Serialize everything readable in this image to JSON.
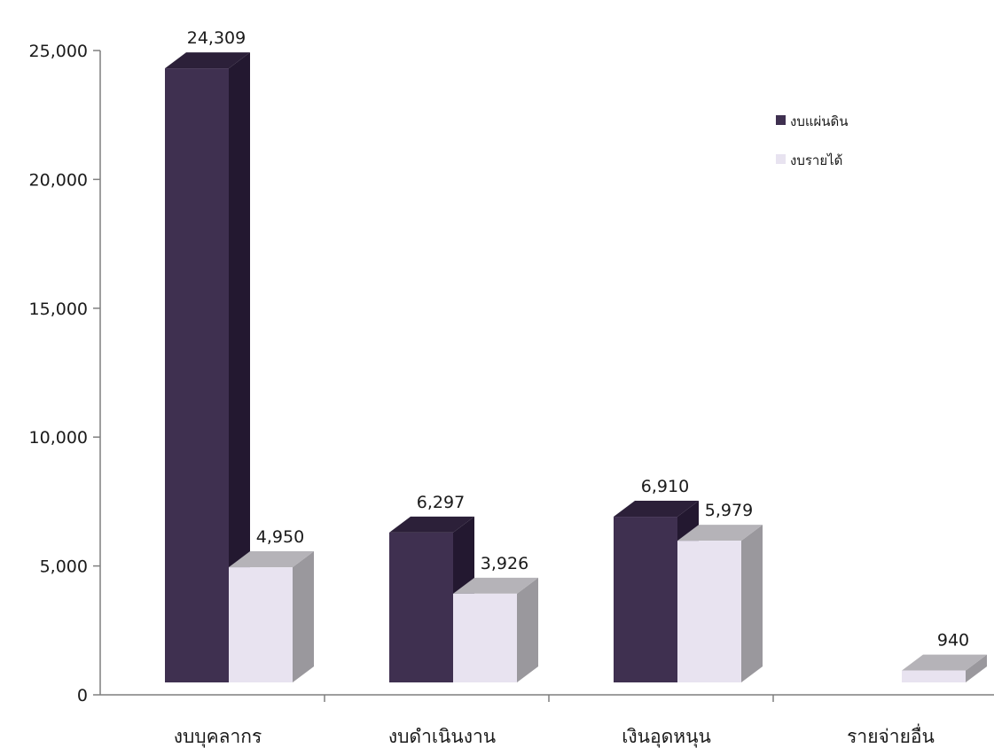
{
  "chart_data": {
    "type": "bar",
    "categories": [
      "งบบุคลากร",
      "งบดำเนินงาน",
      "เงินอุดหนุน",
      "รายจ่ายอื่น"
    ],
    "series": [
      {
        "name": "งบแผ่นดิน",
        "values": [
          24309,
          6297,
          6910,
          null
        ],
        "labels": [
          "24,309",
          "6,297",
          "6,910",
          ""
        ],
        "color": "#3f3050",
        "top_color": "#2c2039",
        "side_color": "#231830"
      },
      {
        "name": "งบรายได้",
        "values": [
          4950,
          3926,
          5979,
          940
        ],
        "labels": [
          "4,950",
          "3,926",
          "5,979",
          "940"
        ],
        "color": "#e8e3f0",
        "top_color": "#b5b3b8",
        "side_color": "#9a989d"
      }
    ],
    "yticks": [
      0,
      5000,
      10000,
      15000,
      20000,
      25000
    ],
    "ytick_labels": [
      "0",
      "5,000",
      "10,000",
      "15,000",
      "20,000",
      "25,000"
    ],
    "ylim": [
      0,
      25000
    ],
    "style": "3d-column",
    "legend": "top-right",
    "grid": false,
    "title": "",
    "xlabel": "",
    "ylabel": ""
  }
}
